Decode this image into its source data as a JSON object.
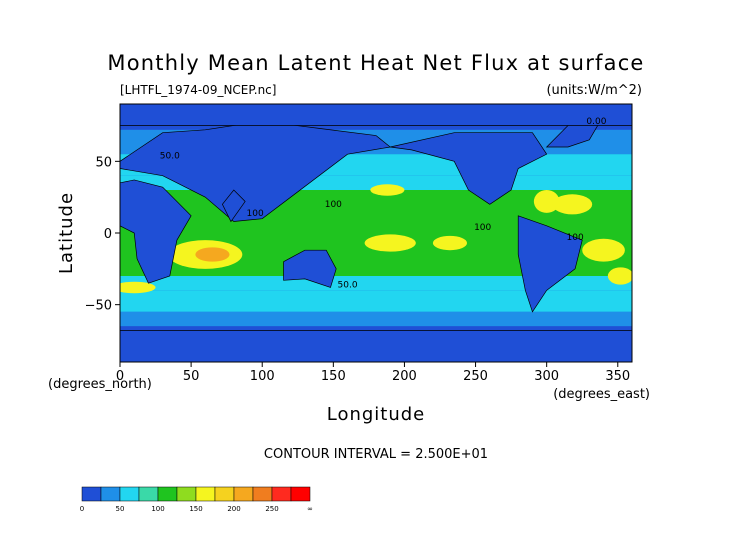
{
  "chart_data": {
    "type": "heatmap",
    "title": "Monthly Mean Latent Heat Net Flux at surface",
    "source_label": "[LHTFL_1974-09_NCEP.nc]",
    "units_label": "(units:W/m^2)",
    "xlabel": "Longitude",
    "ylabel": "Latitude",
    "x_units_label": "(degrees_east)",
    "y_units_label": "(degrees_north)",
    "xlim": [
      0,
      360
    ],
    "ylim": [
      -90,
      90
    ],
    "x_ticks": [
      "0",
      "50",
      "100",
      "150",
      "200",
      "250",
      "300",
      "350"
    ],
    "x_tick_values": [
      0,
      50,
      100,
      150,
      200,
      250,
      300,
      350
    ],
    "y_ticks": [
      "50",
      "0",
      "−50"
    ],
    "y_tick_values": [
      50,
      0,
      -50
    ],
    "contour_interval_text": "CONTOUR INTERVAL = 2.500E+01",
    "contour_labels": [
      "0.00",
      "50.0",
      "100",
      "100",
      "100",
      "50.0",
      "100"
    ],
    "colorbar": {
      "bins": [
        {
          "from": 0,
          "to": 25,
          "color": "#1f4fd6"
        },
        {
          "from": 25,
          "to": 50,
          "color": "#1f8fe8"
        },
        {
          "from": 50,
          "to": 75,
          "color": "#22d6f0"
        },
        {
          "from": 75,
          "to": 100,
          "color": "#3ad9a8"
        },
        {
          "from": 100,
          "to": 125,
          "color": "#1fc41f"
        },
        {
          "from": 125,
          "to": 150,
          "color": "#8fdc1f"
        },
        {
          "from": 150,
          "to": 175,
          "color": "#f5f51f"
        },
        {
          "from": 175,
          "to": 200,
          "color": "#f5d21f"
        },
        {
          "from": 200,
          "to": 225,
          "color": "#f5a81f"
        },
        {
          "from": 225,
          "to": 250,
          "color": "#f07d1f"
        },
        {
          "from": 250,
          "to": 275,
          "color": "#ff2a1f"
        },
        {
          "from": 275,
          "to": "∞",
          "color": "#ff0000"
        }
      ],
      "tick_labels": [
        "0",
        "50",
        "100",
        "150",
        "200",
        "250",
        "∞"
      ],
      "tick_values": [
        0,
        50,
        100,
        150,
        200,
        250,
        300
      ]
    },
    "grid": false,
    "field_description_note": null
  }
}
